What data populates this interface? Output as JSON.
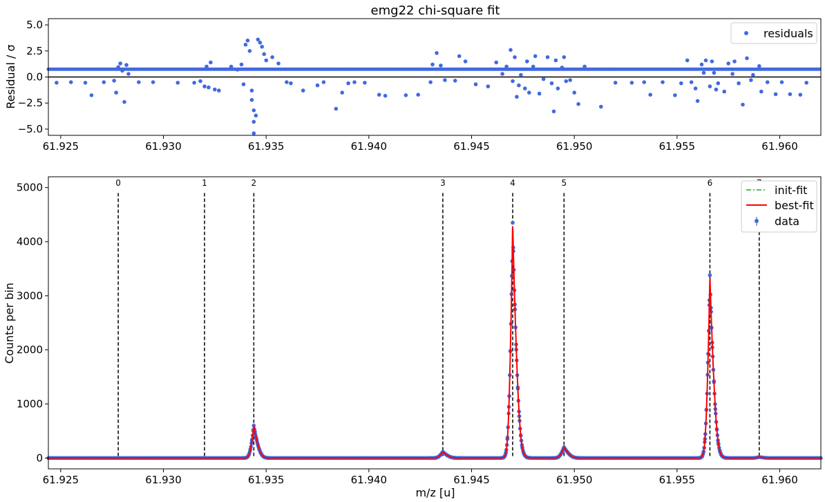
{
  "chart_data": [
    {
      "type": "scatter",
      "title": "emg22 chi-square fit",
      "xlabel": "",
      "ylabel": "Residual / σ",
      "xlim": [
        61.9244,
        61.962
      ],
      "ylim": [
        -5.6,
        5.6
      ],
      "xticks": [
        61.925,
        61.93,
        61.935,
        61.94,
        61.945,
        61.95,
        61.955,
        61.96
      ],
      "xtick_labels": [
        "61.925",
        "61.930",
        "61.935",
        "61.940",
        "61.945",
        "61.950",
        "61.955",
        "61.960"
      ],
      "yticks": [
        -5.0,
        -2.5,
        0.0,
        2.5,
        5.0
      ],
      "ytick_labels": [
        "−5.0",
        "−2.5",
        "0.0",
        "2.5",
        "5.0"
      ],
      "zero_line": 0,
      "legend": {
        "placement": "top-right",
        "entries": [
          {
            "name": "residuals",
            "color": "#4169e1",
            "marker": "dot"
          }
        ]
      },
      "series": [
        {
          "name": "residuals",
          "color": "#4169e1",
          "baseline_value": 0.75,
          "baseline_range": [
            61.9244,
            61.962
          ],
          "points": [
            [
              61.9248,
              -0.55
            ],
            [
              61.9255,
              -0.5
            ],
            [
              61.9262,
              -0.55
            ],
            [
              61.9265,
              -1.75
            ],
            [
              61.9271,
              -0.5
            ],
            [
              61.9276,
              -0.35
            ],
            [
              61.9277,
              -1.5
            ],
            [
              61.9278,
              0.95
            ],
            [
              61.9279,
              1.3
            ],
            [
              61.928,
              0.6
            ],
            [
              61.9281,
              -2.4
            ],
            [
              61.9282,
              1.15
            ],
            [
              61.9283,
              0.3
            ],
            [
              61.9288,
              -0.5
            ],
            [
              61.9295,
              -0.5
            ],
            [
              61.9307,
              -0.55
            ],
            [
              61.9315,
              -0.55
            ],
            [
              61.9318,
              -0.4
            ],
            [
              61.932,
              -0.9
            ],
            [
              61.9321,
              1.0
            ],
            [
              61.9322,
              -1.0
            ],
            [
              61.9323,
              1.4
            ],
            [
              61.9325,
              -1.2
            ],
            [
              61.9327,
              -1.3
            ],
            [
              61.9333,
              1.0
            ],
            [
              61.9336,
              0.7
            ],
            [
              61.9338,
              1.2
            ],
            [
              61.9339,
              -0.7
            ],
            [
              61.934,
              3.1
            ],
            [
              61.9341,
              3.5
            ],
            [
              61.9342,
              2.5
            ],
            [
              61.9343,
              -1.3
            ],
            [
              61.9343,
              -2.2
            ],
            [
              61.9344,
              -3.2
            ],
            [
              61.9344,
              -4.3
            ],
            [
              61.9344,
              -5.4
            ],
            [
              61.9345,
              -3.7
            ],
            [
              61.9346,
              3.6
            ],
            [
              61.9347,
              3.3
            ],
            [
              61.9348,
              2.9
            ],
            [
              61.9349,
              2.2
            ],
            [
              61.935,
              1.6
            ],
            [
              61.9353,
              1.9
            ],
            [
              61.9356,
              1.3
            ],
            [
              61.936,
              -0.5
            ],
            [
              61.9362,
              -0.6
            ],
            [
              61.9368,
              -1.3
            ],
            [
              61.9375,
              -0.8
            ],
            [
              61.9378,
              -0.5
            ],
            [
              61.9384,
              -3.05
            ],
            [
              61.9387,
              -1.5
            ],
            [
              61.939,
              -0.6
            ],
            [
              61.9393,
              -0.5
            ],
            [
              61.9398,
              -0.55
            ],
            [
              61.9405,
              -1.7
            ],
            [
              61.9408,
              -1.8
            ],
            [
              61.9418,
              -1.75
            ],
            [
              61.9424,
              -1.7
            ],
            [
              61.943,
              -0.5
            ],
            [
              61.9431,
              1.2
            ],
            [
              61.9433,
              2.3
            ],
            [
              61.9435,
              1.1
            ],
            [
              61.9437,
              -0.3
            ],
            [
              61.9442,
              -0.35
            ],
            [
              61.9444,
              2.0
            ],
            [
              61.9447,
              1.5
            ],
            [
              61.9452,
              -0.7
            ],
            [
              61.9458,
              -0.9
            ],
            [
              61.9462,
              1.4
            ],
            [
              61.9465,
              0.3
            ],
            [
              61.9467,
              1.0
            ],
            [
              61.9469,
              2.6
            ],
            [
              61.947,
              -0.4
            ],
            [
              61.9471,
              1.9
            ],
            [
              61.9472,
              -1.9
            ],
            [
              61.9473,
              -0.8
            ],
            [
              61.9474,
              0.2
            ],
            [
              61.9476,
              -1.1
            ],
            [
              61.9477,
              1.5
            ],
            [
              61.9478,
              -1.5
            ],
            [
              61.948,
              1.0
            ],
            [
              61.9481,
              2.0
            ],
            [
              61.9483,
              -1.6
            ],
            [
              61.9485,
              -0.2
            ],
            [
              61.9487,
              1.9
            ],
            [
              61.9489,
              -0.6
            ],
            [
              61.949,
              -3.3
            ],
            [
              61.9491,
              1.6
            ],
            [
              61.9492,
              -1.1
            ],
            [
              61.9494,
              0.9
            ],
            [
              61.9495,
              1.9
            ],
            [
              61.9496,
              -0.4
            ],
            [
              61.9498,
              -0.3
            ],
            [
              61.95,
              -1.5
            ],
            [
              61.9502,
              -2.6
            ],
            [
              61.9505,
              1.0
            ],
            [
              61.9513,
              -2.85
            ],
            [
              61.952,
              -0.55
            ],
            [
              61.9528,
              -0.55
            ],
            [
              61.9534,
              -0.5
            ],
            [
              61.9537,
              -1.7
            ],
            [
              61.9543,
              -0.5
            ],
            [
              61.9549,
              -1.75
            ],
            [
              61.9552,
              -0.6
            ],
            [
              61.9555,
              1.6
            ],
            [
              61.9557,
              -0.5
            ],
            [
              61.9559,
              -1.1
            ],
            [
              61.956,
              -2.3
            ],
            [
              61.9562,
              1.2
            ],
            [
              61.9563,
              0.4
            ],
            [
              61.9564,
              1.6
            ],
            [
              61.9566,
              -0.9
            ],
            [
              61.9567,
              1.5
            ],
            [
              61.9568,
              0.4
            ],
            [
              61.9569,
              -1.2
            ],
            [
              61.957,
              -0.6
            ],
            [
              61.9573,
              -1.4
            ],
            [
              61.9575,
              1.3
            ],
            [
              61.9577,
              0.3
            ],
            [
              61.9578,
              1.5
            ],
            [
              61.958,
              -0.6
            ],
            [
              61.9582,
              -2.65
            ],
            [
              61.9584,
              1.8
            ],
            [
              61.9586,
              -0.3
            ],
            [
              61.9587,
              0.2
            ],
            [
              61.959,
              1.05
            ],
            [
              61.9591,
              -1.4
            ],
            [
              61.9594,
              -0.5
            ],
            [
              61.9598,
              -1.65
            ],
            [
              61.9601,
              -0.5
            ],
            [
              61.9605,
              -1.65
            ],
            [
              61.961,
              -1.7
            ],
            [
              61.9613,
              -0.55
            ]
          ]
        }
      ]
    },
    {
      "type": "line",
      "title": "",
      "xlabel": "m/z [u]",
      "ylabel": "Counts per bin",
      "xlim": [
        61.9244,
        61.962
      ],
      "ylim": [
        -200,
        5200
      ],
      "xticks": [
        61.925,
        61.93,
        61.935,
        61.94,
        61.945,
        61.95,
        61.955,
        61.96
      ],
      "xtick_labels": [
        "61.925",
        "61.930",
        "61.935",
        "61.940",
        "61.945",
        "61.950",
        "61.955",
        "61.960"
      ],
      "yticks": [
        0,
        1000,
        2000,
        3000,
        4000,
        5000
      ],
      "ytick_labels": [
        "0",
        "1000",
        "2000",
        "3000",
        "4000",
        "5000"
      ],
      "legend": {
        "placement": "top-right",
        "entries": [
          {
            "name": "init-fit",
            "color": "#2ca02c",
            "style": "dash-dot"
          },
          {
            "name": "best-fit",
            "color": "#ff0000",
            "style": "solid"
          },
          {
            "name": "data",
            "color": "#4169e1",
            "style": "errorbar-dot"
          }
        ]
      },
      "peak_markers": [
        {
          "label": "0",
          "x": 61.9278
        },
        {
          "label": "1",
          "x": 61.932
        },
        {
          "label": "2",
          "x": 61.9344
        },
        {
          "label": "3",
          "x": 61.9436
        },
        {
          "label": "4",
          "x": 61.947
        },
        {
          "label": "5",
          "x": 61.9495
        },
        {
          "label": "6",
          "x": 61.9566
        },
        {
          "label": "7",
          "x": 61.959
        }
      ],
      "peak_marker_top": 4900,
      "peaks": [
        {
          "x": 61.9278,
          "height": 0,
          "width": 0.00012
        },
        {
          "x": 61.932,
          "height": 0,
          "width": 0.00012
        },
        {
          "x": 61.9344,
          "height": 600,
          "width": 0.00014
        },
        {
          "x": 61.9436,
          "height": 115,
          "width": 0.00016
        },
        {
          "x": 61.947,
          "height": 4350,
          "width": 0.00014
        },
        {
          "x": 61.9495,
          "height": 200,
          "width": 0.00016
        },
        {
          "x": 61.9566,
          "height": 3380,
          "width": 0.00014
        },
        {
          "x": 61.959,
          "height": 20,
          "width": 0.00014
        }
      ],
      "series": [
        {
          "name": "init-fit",
          "color": "#2ca02c"
        },
        {
          "name": "best-fit",
          "color": "#ff0000"
        },
        {
          "name": "data",
          "color": "#4169e1"
        }
      ]
    }
  ]
}
